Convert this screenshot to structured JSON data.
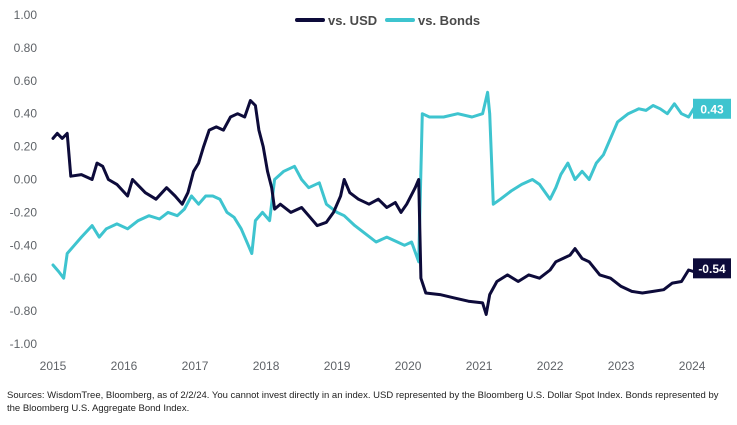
{
  "chart_data": {
    "type": "line",
    "title": "",
    "xlabel": "",
    "ylabel": "",
    "ylim": [
      -1.0,
      1.0
    ],
    "xlim": [
      2015,
      2024.35
    ],
    "y_ticks": [
      "1.00",
      "0.80",
      "0.60",
      "0.40",
      "0.20",
      "0.00",
      "-0.20",
      "-0.40",
      "-0.60",
      "-0.80",
      "-1.00"
    ],
    "x_ticks": [
      "2015",
      "2016",
      "2017",
      "2018",
      "2019",
      "2020",
      "2021",
      "2022",
      "2023",
      "2024"
    ],
    "grid": false,
    "legend_position": "top-center",
    "series": [
      {
        "name": "vs. USD",
        "color": "#0d0b3a",
        "end_label": "-0.54",
        "points": [
          [
            2015.0,
            0.25
          ],
          [
            2015.06,
            0.28
          ],
          [
            2015.13,
            0.25
          ],
          [
            2015.2,
            0.28
          ],
          [
            2015.25,
            0.02
          ],
          [
            2015.4,
            0.03
          ],
          [
            2015.55,
            0.0
          ],
          [
            2015.62,
            0.1
          ],
          [
            2015.7,
            0.08
          ],
          [
            2015.78,
            0.0
          ],
          [
            2015.9,
            -0.03
          ],
          [
            2016.05,
            -0.1
          ],
          [
            2016.12,
            0.0
          ],
          [
            2016.3,
            -0.08
          ],
          [
            2016.45,
            -0.12
          ],
          [
            2016.6,
            -0.05
          ],
          [
            2016.72,
            -0.1
          ],
          [
            2016.82,
            -0.15
          ],
          [
            2016.9,
            -0.08
          ],
          [
            2016.98,
            0.05
          ],
          [
            2017.05,
            0.1
          ],
          [
            2017.12,
            0.2
          ],
          [
            2017.2,
            0.3
          ],
          [
            2017.3,
            0.32
          ],
          [
            2017.4,
            0.3
          ],
          [
            2017.5,
            0.38
          ],
          [
            2017.6,
            0.4
          ],
          [
            2017.7,
            0.38
          ],
          [
            2017.78,
            0.48
          ],
          [
            2017.85,
            0.45
          ],
          [
            2017.9,
            0.3
          ],
          [
            2017.96,
            0.2
          ],
          [
            2018.02,
            0.05
          ],
          [
            2018.08,
            -0.05
          ],
          [
            2018.12,
            -0.18
          ],
          [
            2018.2,
            -0.15
          ],
          [
            2018.35,
            -0.2
          ],
          [
            2018.5,
            -0.17
          ],
          [
            2018.62,
            -0.23
          ],
          [
            2018.72,
            -0.28
          ],
          [
            2018.85,
            -0.26
          ],
          [
            2018.95,
            -0.2
          ],
          [
            2019.05,
            -0.1
          ],
          [
            2019.1,
            0.0
          ],
          [
            2019.18,
            -0.08
          ],
          [
            2019.3,
            -0.12
          ],
          [
            2019.45,
            -0.15
          ],
          [
            2019.58,
            -0.12
          ],
          [
            2019.7,
            -0.17
          ],
          [
            2019.82,
            -0.14
          ],
          [
            2019.9,
            -0.2
          ],
          [
            2019.98,
            -0.15
          ],
          [
            2020.1,
            -0.05
          ],
          [
            2020.15,
            0.0
          ],
          [
            2020.18,
            -0.6
          ],
          [
            2020.25,
            -0.69
          ],
          [
            2020.45,
            -0.7
          ],
          [
            2020.65,
            -0.72
          ],
          [
            2020.85,
            -0.74
          ],
          [
            2021.05,
            -0.75
          ],
          [
            2021.1,
            -0.82
          ],
          [
            2021.15,
            -0.7
          ],
          [
            2021.25,
            -0.62
          ],
          [
            2021.4,
            -0.58
          ],
          [
            2021.55,
            -0.62
          ],
          [
            2021.7,
            -0.58
          ],
          [
            2021.85,
            -0.6
          ],
          [
            2022.0,
            -0.55
          ],
          [
            2022.08,
            -0.5
          ],
          [
            2022.18,
            -0.48
          ],
          [
            2022.28,
            -0.46
          ],
          [
            2022.35,
            -0.42
          ],
          [
            2022.45,
            -0.48
          ],
          [
            2022.55,
            -0.5
          ],
          [
            2022.7,
            -0.58
          ],
          [
            2022.85,
            -0.6
          ],
          [
            2023.0,
            -0.65
          ],
          [
            2023.15,
            -0.68
          ],
          [
            2023.3,
            -0.69
          ],
          [
            2023.45,
            -0.68
          ],
          [
            2023.6,
            -0.67
          ],
          [
            2023.72,
            -0.63
          ],
          [
            2023.85,
            -0.62
          ],
          [
            2023.95,
            -0.55
          ],
          [
            2024.1,
            -0.57
          ],
          [
            2024.2,
            -0.54
          ]
        ]
      },
      {
        "name": "vs. Bonds",
        "color": "#3ec4cf",
        "end_label": "0.43",
        "points": [
          [
            2015.0,
            -0.52
          ],
          [
            2015.08,
            -0.56
          ],
          [
            2015.15,
            -0.6
          ],
          [
            2015.2,
            -0.45
          ],
          [
            2015.3,
            -0.4
          ],
          [
            2015.4,
            -0.35
          ],
          [
            2015.55,
            -0.28
          ],
          [
            2015.65,
            -0.35
          ],
          [
            2015.75,
            -0.3
          ],
          [
            2015.9,
            -0.27
          ],
          [
            2016.05,
            -0.3
          ],
          [
            2016.2,
            -0.25
          ],
          [
            2016.35,
            -0.22
          ],
          [
            2016.5,
            -0.24
          ],
          [
            2016.62,
            -0.2
          ],
          [
            2016.75,
            -0.22
          ],
          [
            2016.85,
            -0.18
          ],
          [
            2016.95,
            -0.1
          ],
          [
            2017.05,
            -0.15
          ],
          [
            2017.15,
            -0.1
          ],
          [
            2017.25,
            -0.1
          ],
          [
            2017.35,
            -0.12
          ],
          [
            2017.45,
            -0.2
          ],
          [
            2017.55,
            -0.23
          ],
          [
            2017.65,
            -0.3
          ],
          [
            2017.75,
            -0.4
          ],
          [
            2017.8,
            -0.45
          ],
          [
            2017.85,
            -0.25
          ],
          [
            2017.95,
            -0.2
          ],
          [
            2018.05,
            -0.25
          ],
          [
            2018.12,
            0.0
          ],
          [
            2018.25,
            0.05
          ],
          [
            2018.4,
            0.08
          ],
          [
            2018.5,
            0.0
          ],
          [
            2018.6,
            -0.05
          ],
          [
            2018.75,
            -0.02
          ],
          [
            2018.85,
            -0.15
          ],
          [
            2019.0,
            -0.2
          ],
          [
            2019.1,
            -0.22
          ],
          [
            2019.25,
            -0.28
          ],
          [
            2019.4,
            -0.33
          ],
          [
            2019.55,
            -0.38
          ],
          [
            2019.7,
            -0.35
          ],
          [
            2019.85,
            -0.38
          ],
          [
            2019.95,
            -0.4
          ],
          [
            2020.05,
            -0.38
          ],
          [
            2020.15,
            -0.5
          ],
          [
            2020.2,
            0.4
          ],
          [
            2020.3,
            0.38
          ],
          [
            2020.5,
            0.38
          ],
          [
            2020.7,
            0.4
          ],
          [
            2020.9,
            0.38
          ],
          [
            2021.05,
            0.4
          ],
          [
            2021.12,
            0.53
          ],
          [
            2021.15,
            0.4
          ],
          [
            2021.2,
            -0.15
          ],
          [
            2021.3,
            -0.12
          ],
          [
            2021.45,
            -0.07
          ],
          [
            2021.6,
            -0.03
          ],
          [
            2021.75,
            0.0
          ],
          [
            2021.85,
            -0.03
          ],
          [
            2022.0,
            -0.12
          ],
          [
            2022.08,
            -0.05
          ],
          [
            2022.15,
            0.03
          ],
          [
            2022.25,
            0.1
          ],
          [
            2022.35,
            0.0
          ],
          [
            2022.45,
            0.05
          ],
          [
            2022.55,
            0.0
          ],
          [
            2022.65,
            0.1
          ],
          [
            2022.75,
            0.15
          ],
          [
            2022.85,
            0.25
          ],
          [
            2022.95,
            0.35
          ],
          [
            2023.1,
            0.4
          ],
          [
            2023.25,
            0.43
          ],
          [
            2023.35,
            0.42
          ],
          [
            2023.45,
            0.45
          ],
          [
            2023.55,
            0.43
          ],
          [
            2023.65,
            0.4
          ],
          [
            2023.75,
            0.46
          ],
          [
            2023.85,
            0.4
          ],
          [
            2023.95,
            0.38
          ],
          [
            2024.05,
            0.45
          ],
          [
            2024.12,
            0.42
          ],
          [
            2024.2,
            0.43
          ]
        ]
      }
    ]
  },
  "footnote": "Sources: WisdomTree, Bloomberg, as of 2/2/24. You cannot invest directly in an index. USD represented by the Bloomberg U.S. Dollar Spot Index. Bonds represented by the Bloomberg U.S. Aggregate Bond Index."
}
